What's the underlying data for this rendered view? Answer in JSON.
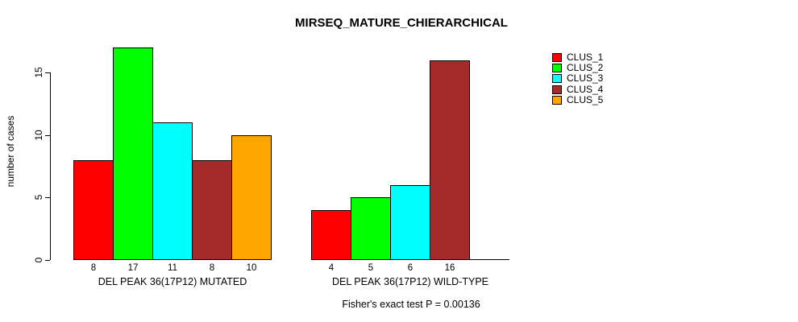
{
  "chart_data": {
    "type": "bar",
    "title": "MIRSEQ_MATURE_CHIERARCHICAL",
    "ylabel": "number of cases",
    "xlabel": "",
    "ylim": [
      0,
      17
    ],
    "yticks": [
      0,
      5,
      10,
      15
    ],
    "grid": false,
    "legend_position": "right-outside",
    "series_names": [
      "CLUS_1",
      "CLUS_2",
      "CLUS_3",
      "CLUS_4",
      "CLUS_5"
    ],
    "series_colors": [
      "#ff0000",
      "#00ff00",
      "#00ffff",
      "#a52a2a",
      "#ffa500"
    ],
    "groups": [
      {
        "label": "DEL PEAK 36(17P12) MUTATED",
        "values": [
          8,
          17,
          11,
          8,
          10
        ],
        "bar_labels": [
          "8",
          "17",
          "11",
          "8",
          "10"
        ]
      },
      {
        "label": "DEL PEAK 36(17P12) WILD-TYPE",
        "values": [
          4,
          5,
          6,
          16,
          0
        ],
        "bar_labels": [
          "4",
          "5",
          "6",
          "16",
          ""
        ]
      }
    ],
    "annotation": "Fisher's exact test P = 0.00136"
  }
}
